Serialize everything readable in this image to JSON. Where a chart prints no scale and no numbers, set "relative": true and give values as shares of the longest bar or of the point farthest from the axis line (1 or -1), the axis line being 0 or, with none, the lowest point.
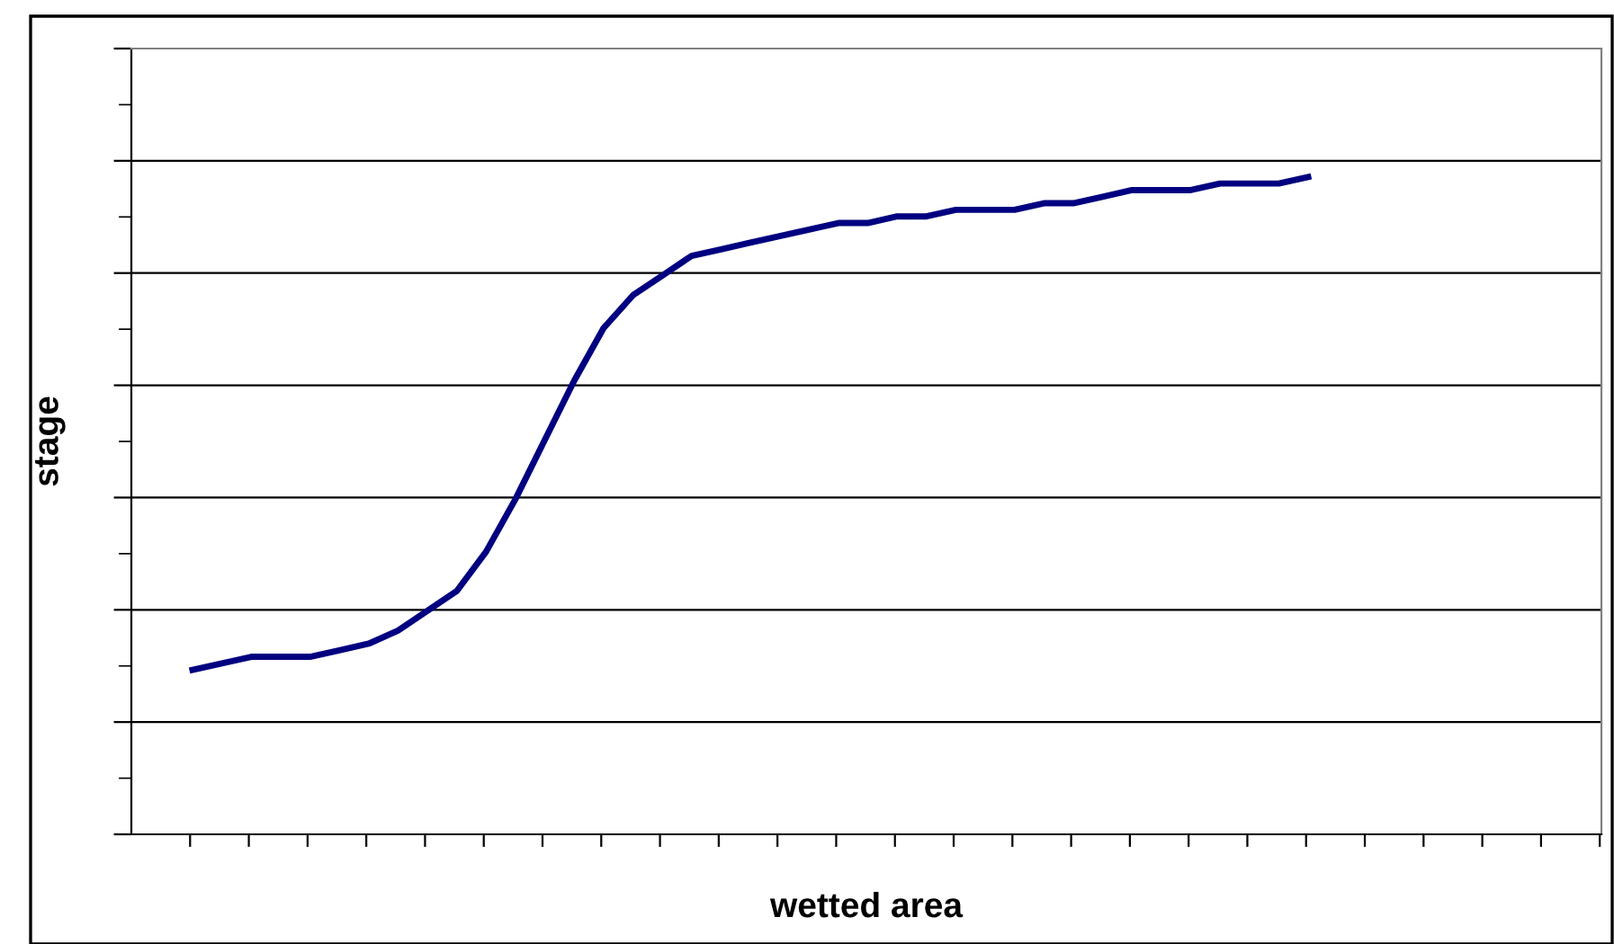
{
  "chart_data": {
    "type": "line",
    "xlabel": "wetted area",
    "ylabel": "stage",
    "relative": true,
    "grid": "y",
    "tick_labels": false,
    "legend": false,
    "marker": "none",
    "line_style": "solid",
    "categories": [
      null,
      null,
      null,
      null,
      null,
      null,
      null,
      null,
      null,
      null,
      null,
      null,
      null,
      null,
      null,
      null,
      null,
      null,
      null,
      null,
      null,
      null,
      null,
      null,
      null,
      null,
      null,
      null,
      null,
      null,
      null,
      null,
      null,
      null,
      null,
      null,
      null,
      null,
      null
    ],
    "series": [
      {
        "color": "#000080",
        "values": [
          0.25,
          0.26,
          0.27,
          0.27,
          0.27,
          0.28,
          0.29,
          0.31,
          0.34,
          0.37,
          0.43,
          0.51,
          0.6,
          0.69,
          0.77,
          0.82,
          0.85,
          0.88,
          0.89,
          0.9,
          0.91,
          0.92,
          0.93,
          0.93,
          0.94,
          0.94,
          0.95,
          0.95,
          0.95,
          0.96,
          0.96,
          0.97,
          0.98,
          0.98,
          0.98,
          0.99,
          0.99,
          0.99,
          1
        ]
      }
    ]
  }
}
